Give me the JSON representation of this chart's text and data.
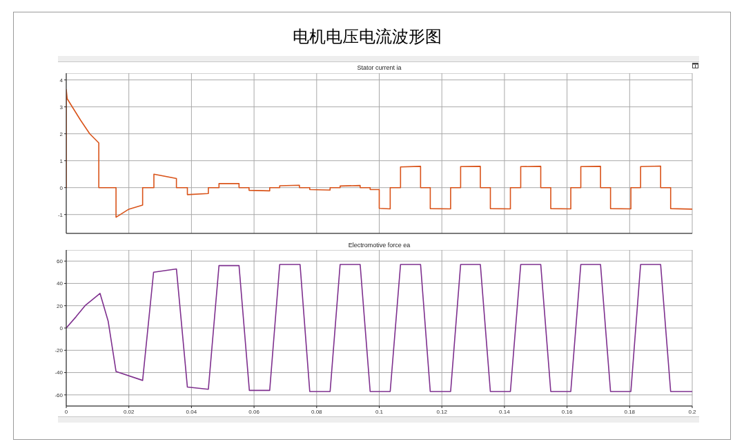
{
  "chart_data": [
    {
      "type": "line",
      "title": "电机电压电流波形图",
      "subtitle": "Stator current ia",
      "x": [
        0,
        0,
        0.0003,
        0.0046,
        0.0075,
        0.0104,
        0.0104,
        0.0159,
        0.0159,
        0.02,
        0.0244,
        0.0244,
        0.028,
        0.028,
        0.0352,
        0.0352,
        0.0387,
        0.0387,
        0.0454,
        0.0454,
        0.0488,
        0.0488,
        0.0552,
        0.0552,
        0.0584,
        0.0584,
        0.065,
        0.065,
        0.0682,
        0.0682,
        0.0745,
        0.0745,
        0.0778,
        0.0778,
        0.0843,
        0.0843,
        0.0875,
        0.0875,
        0.0939,
        0.0939,
        0.0971,
        0.0971,
        0.1,
        0.1,
        0.1035,
        0.1035,
        0.1068,
        0.1068,
        0.1132,
        0.1132,
        0.1163,
        0.1163,
        0.1228,
        0.1228,
        0.126,
        0.126,
        0.1323,
        0.1323,
        0.1355,
        0.1355,
        0.1419,
        0.1419,
        0.1452,
        0.1452,
        0.1516,
        0.1516,
        0.1548,
        0.1548,
        0.1612,
        0.1612,
        0.1644,
        0.1644,
        0.1707,
        0.1707,
        0.1739,
        0.1739,
        0.1804,
        0.1804,
        0.1835,
        0.1835,
        0.1899,
        0.1899,
        0.1931,
        0.1931,
        0.2
      ],
      "series": [
        {
          "color": "#d95319",
          "values": [
            0,
            3.64,
            3.3,
            2.5,
            2.0,
            1.66,
            0,
            0,
            -1.1,
            -0.8,
            -0.65,
            0,
            0,
            0.5,
            0.34,
            0,
            0,
            -0.26,
            -0.22,
            0,
            0,
            0.15,
            0.15,
            0,
            0,
            -0.1,
            -0.12,
            0,
            0,
            0.07,
            0.09,
            0,
            0,
            -0.07,
            -0.09,
            0,
            0,
            0.06,
            0.08,
            0,
            0,
            -0.07,
            -0.07,
            -0.77,
            -0.79,
            0,
            0,
            0.77,
            0.79,
            0,
            0,
            -0.78,
            -0.79,
            0,
            0,
            0.78,
            0.79,
            0,
            0,
            -0.78,
            -0.79,
            0,
            0,
            0.78,
            0.79,
            0,
            0,
            -0.78,
            -0.79,
            0,
            0,
            0.78,
            0.79,
            0,
            0,
            -0.78,
            -0.79,
            0,
            0,
            0.78,
            0.8,
            0,
            0,
            -0.78,
            -0.8
          ]
        }
      ],
      "xlim": [
        0,
        0.2
      ],
      "xticks": [
        0,
        0.02,
        0.04,
        0.06,
        0.08,
        0.1,
        0.12,
        0.14,
        0.16,
        0.18,
        0.2
      ],
      "ylim": [
        -1.7,
        4.25
      ],
      "yticks": [
        -1,
        0,
        1,
        2,
        3,
        4
      ],
      "grid": true,
      "tick_labels": "y"
    },
    {
      "type": "line",
      "title": "Electromotive force ea",
      "x": [
        0,
        0.0031,
        0.006,
        0.0108,
        0.0134,
        0.0159,
        0.0244,
        0.0279,
        0.0352,
        0.0387,
        0.0454,
        0.0488,
        0.0552,
        0.0585,
        0.065,
        0.0682,
        0.0747,
        0.0778,
        0.0843,
        0.0875,
        0.0939,
        0.0971,
        0.1035,
        0.1068,
        0.1132,
        0.1163,
        0.1228,
        0.126,
        0.1323,
        0.1355,
        0.1419,
        0.1452,
        0.1516,
        0.1548,
        0.1612,
        0.1644,
        0.1707,
        0.1739,
        0.1804,
        0.1835,
        0.1899,
        0.1931,
        0.2
      ],
      "series": [
        {
          "color": "#7e2f8e",
          "values": [
            0,
            10,
            20,
            31,
            6,
            -39,
            -47,
            50,
            53,
            -53,
            -55,
            56,
            56,
            -56,
            -56,
            57,
            57,
            -57,
            -57,
            57,
            57,
            -57,
            -57,
            57,
            57,
            -57,
            -57,
            57,
            57,
            -57,
            -57,
            57,
            57,
            -57,
            -57,
            57,
            57,
            -57,
            -57,
            57,
            57,
            -57,
            -57
          ]
        }
      ],
      "xlim": [
        0,
        0.2
      ],
      "xticks": [
        0,
        0.02,
        0.04,
        0.06,
        0.08,
        0.1,
        0.12,
        0.14,
        0.16,
        0.18,
        0.2
      ],
      "ylim": [
        -70,
        70
      ],
      "yticks": [
        -60,
        -40,
        -20,
        0,
        20,
        40,
        60
      ],
      "grid": true
    }
  ]
}
